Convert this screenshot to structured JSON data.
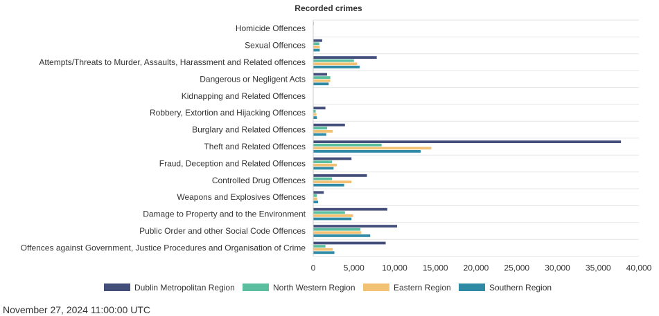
{
  "chart_data": {
    "type": "bar",
    "orientation": "horizontal",
    "title": "Recorded crimes",
    "categories": [
      "Homicide Offences",
      "Sexual Offences",
      "Attempts/Threats to Murder, Assaults, Harassment and Related offences",
      "Dangerous or Negligent Acts",
      "Kidnapping and Related Offences",
      "Robbery, Extortion and Hijacking Offences",
      "Burglary and Related Offences",
      "Theft and Related Offences",
      "Fraud, Deception and Related Offences",
      "Controlled Drug Offences",
      "Weapons and Explosives Offences",
      "Damage to Property and to the Environment",
      "Public Order and other Social Code Offences",
      "Offences against Government, Justice Procedures and Organisation of Crime"
    ],
    "series": [
      {
        "name": "Dublin Metropolitan Region",
        "color": "#434f7a",
        "values": [
          60,
          1100,
          7800,
          1700,
          40,
          1500,
          3900,
          37800,
          4700,
          6600,
          1300,
          9100,
          10300,
          8900
        ]
      },
      {
        "name": "North Western Region",
        "color": "#5bbf9f",
        "values": [
          25,
          750,
          5000,
          2100,
          15,
          300,
          1700,
          8400,
          2300,
          2300,
          450,
          3900,
          5800,
          1500
        ]
      },
      {
        "name": "Eastern Region",
        "color": "#f2c173",
        "values": [
          35,
          800,
          5400,
          2100,
          20,
          400,
          2400,
          14500,
          2900,
          4700,
          500,
          4900,
          5900,
          2400
        ]
      },
      {
        "name": "Southern Region",
        "color": "#2f8aa5",
        "values": [
          30,
          800,
          5700,
          1900,
          20,
          450,
          1600,
          13200,
          2500,
          3800,
          600,
          4700,
          7000,
          2600
        ]
      }
    ],
    "xlim": [
      0,
      40000
    ],
    "xticks": [
      0,
      5000,
      10000,
      15000,
      20000,
      25000,
      30000,
      35000,
      40000
    ],
    "xtick_labels": [
      "0",
      "5,000",
      "10,000",
      "15,000",
      "20,000",
      "25,000",
      "30,000",
      "35,000",
      "40,000"
    ],
    "legend": "bottom",
    "grid": "horizontal separators"
  },
  "footer": {
    "timestamp": "November 27, 2024 11:00:00 UTC"
  }
}
